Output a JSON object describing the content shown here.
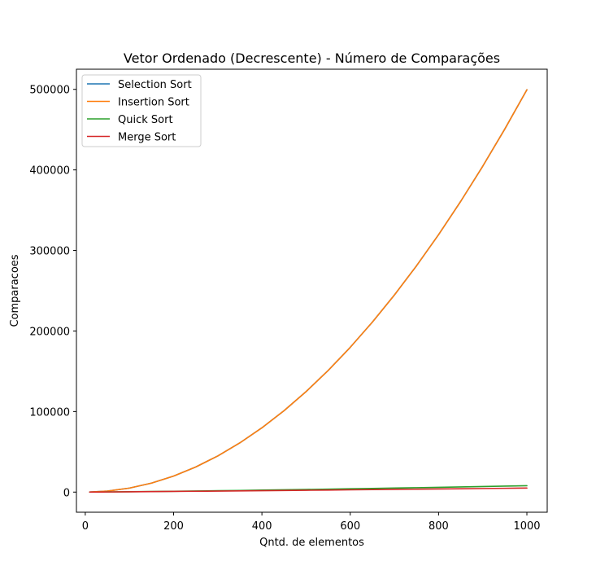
{
  "chart_data": {
    "type": "line",
    "title": "Vetor Ordenado (Decrescente) - Número de Comparações",
    "xlabel": "Qntd. de elementos",
    "ylabel": "Comparacoes",
    "xlim": [
      -20,
      1046
    ],
    "ylim": [
      -25000,
      525000
    ],
    "xticks": [
      0,
      200,
      400,
      600,
      800,
      1000
    ],
    "yticks": [
      0,
      100000,
      200000,
      300000,
      400000,
      500000
    ],
    "x": [
      10,
      50,
      100,
      150,
      200,
      250,
      300,
      350,
      400,
      450,
      500,
      550,
      600,
      650,
      700,
      750,
      800,
      850,
      900,
      950,
      1000
    ],
    "legend_position": "upper left",
    "grid": false,
    "series": [
      {
        "name": "Selection Sort",
        "color": "#1f77b4",
        "values": [
          45,
          1225,
          4950,
          11175,
          19900,
          31125,
          44850,
          61075,
          79800,
          101025,
          124750,
          150975,
          179700,
          210925,
          244650,
          280875,
          319600,
          360825,
          404550,
          450775,
          499500
        ]
      },
      {
        "name": "Insertion Sort",
        "color": "#ff7f0e",
        "values": [
          45,
          1225,
          4950,
          11175,
          19900,
          31125,
          44850,
          61075,
          79800,
          101025,
          124750,
          150975,
          179700,
          210925,
          244650,
          280875,
          319600,
          360825,
          404550,
          450775,
          499500
        ]
      },
      {
        "name": "Quick Sort",
        "color": "#2ca02c",
        "values": [
          25,
          180,
          420,
          700,
          1000,
          1350,
          1700,
          2050,
          2450,
          2850,
          3250,
          3650,
          4100,
          4550,
          5000,
          5450,
          5900,
          6400,
          6900,
          7400,
          7900
        ]
      },
      {
        "name": "Merge Sort",
        "color": "#d62728",
        "values": [
          15,
          150,
          350,
          560,
          800,
          1020,
          1250,
          1500,
          1750,
          2000,
          2250,
          2520,
          2800,
          3050,
          3350,
          3600,
          3900,
          4150,
          4450,
          4700,
          5000
        ]
      }
    ]
  }
}
